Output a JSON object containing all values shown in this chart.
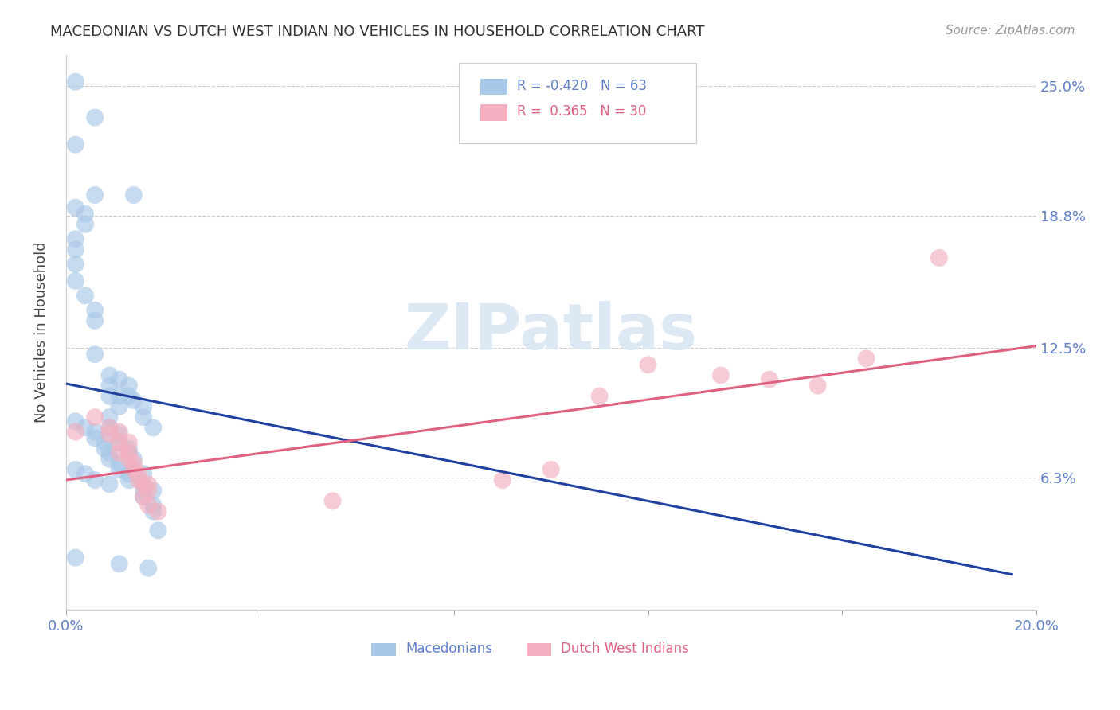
{
  "title": "MACEDONIAN VS DUTCH WEST INDIAN NO VEHICLES IN HOUSEHOLD CORRELATION CHART",
  "source": "Source: ZipAtlas.com",
  "ylabel": "No Vehicles in Household",
  "xlim": [
    0.0,
    0.2
  ],
  "ylim": [
    0.0,
    0.265
  ],
  "ytick_vals": [
    0.0,
    0.063,
    0.125,
    0.188,
    0.25
  ],
  "ytick_labels": [
    "",
    "6.3%",
    "12.5%",
    "18.8%",
    "25.0%"
  ],
  "xtick_vals": [
    0.0,
    0.04,
    0.08,
    0.12,
    0.16,
    0.2
  ],
  "xtick_labels": [
    "0.0%",
    "",
    "",
    "",
    "",
    "20.0%"
  ],
  "blue_R": -0.42,
  "blue_N": 63,
  "pink_R": 0.365,
  "pink_N": 30,
  "blue_color": "#a8c8e8",
  "pink_color": "#f4b0c0",
  "blue_line_color": "#2040a0",
  "pink_line_color": "#e06080",
  "label_color": "#6080cc",
  "watermark_color": "#dde8f5",
  "blue_scatter_x": [
    0.002,
    0.006,
    0.006,
    0.014,
    0.002,
    0.002,
    0.004,
    0.004,
    0.002,
    0.002,
    0.002,
    0.002,
    0.004,
    0.006,
    0.006,
    0.009,
    0.009,
    0.011,
    0.011,
    0.009,
    0.009,
    0.011,
    0.011,
    0.013,
    0.013,
    0.014,
    0.014,
    0.016,
    0.016,
    0.018,
    0.006,
    0.009,
    0.011,
    0.013,
    0.013,
    0.014,
    0.016,
    0.016,
    0.018,
    0.002,
    0.004,
    0.006,
    0.006,
    0.008,
    0.008,
    0.009,
    0.009,
    0.011,
    0.011,
    0.013,
    0.013,
    0.016,
    0.016,
    0.018,
    0.018,
    0.002,
    0.004,
    0.006,
    0.009,
    0.002,
    0.011,
    0.019,
    0.017
  ],
  "blue_scatter_y": [
    0.252,
    0.235,
    0.198,
    0.198,
    0.222,
    0.192,
    0.189,
    0.184,
    0.177,
    0.172,
    0.165,
    0.157,
    0.15,
    0.143,
    0.138,
    0.102,
    0.107,
    0.102,
    0.097,
    0.092,
    0.087,
    0.084,
    0.08,
    0.077,
    0.075,
    0.072,
    0.067,
    0.065,
    0.06,
    0.057,
    0.122,
    0.112,
    0.11,
    0.107,
    0.102,
    0.1,
    0.097,
    0.092,
    0.087,
    0.09,
    0.087,
    0.085,
    0.082,
    0.08,
    0.077,
    0.075,
    0.072,
    0.07,
    0.067,
    0.065,
    0.062,
    0.057,
    0.054,
    0.05,
    0.047,
    0.067,
    0.065,
    0.062,
    0.06,
    0.025,
    0.022,
    0.038,
    0.02
  ],
  "pink_scatter_x": [
    0.002,
    0.006,
    0.009,
    0.009,
    0.011,
    0.011,
    0.011,
    0.013,
    0.013,
    0.013,
    0.014,
    0.014,
    0.015,
    0.015,
    0.016,
    0.016,
    0.017,
    0.017,
    0.017,
    0.019,
    0.055,
    0.09,
    0.1,
    0.11,
    0.12,
    0.135,
    0.145,
    0.155,
    0.165,
    0.18
  ],
  "pink_scatter_y": [
    0.085,
    0.092,
    0.087,
    0.084,
    0.085,
    0.08,
    0.075,
    0.08,
    0.075,
    0.072,
    0.07,
    0.067,
    0.065,
    0.062,
    0.06,
    0.054,
    0.06,
    0.057,
    0.05,
    0.047,
    0.052,
    0.062,
    0.067,
    0.102,
    0.117,
    0.112,
    0.11,
    0.107,
    0.12,
    0.168
  ],
  "blue_line_x0": 0.0,
  "blue_line_x1": 0.195,
  "blue_line_y0": 0.108,
  "blue_line_y1": 0.017,
  "pink_line_x0": 0.0,
  "pink_line_x1": 0.2,
  "pink_line_y0": 0.062,
  "pink_line_y1": 0.126
}
